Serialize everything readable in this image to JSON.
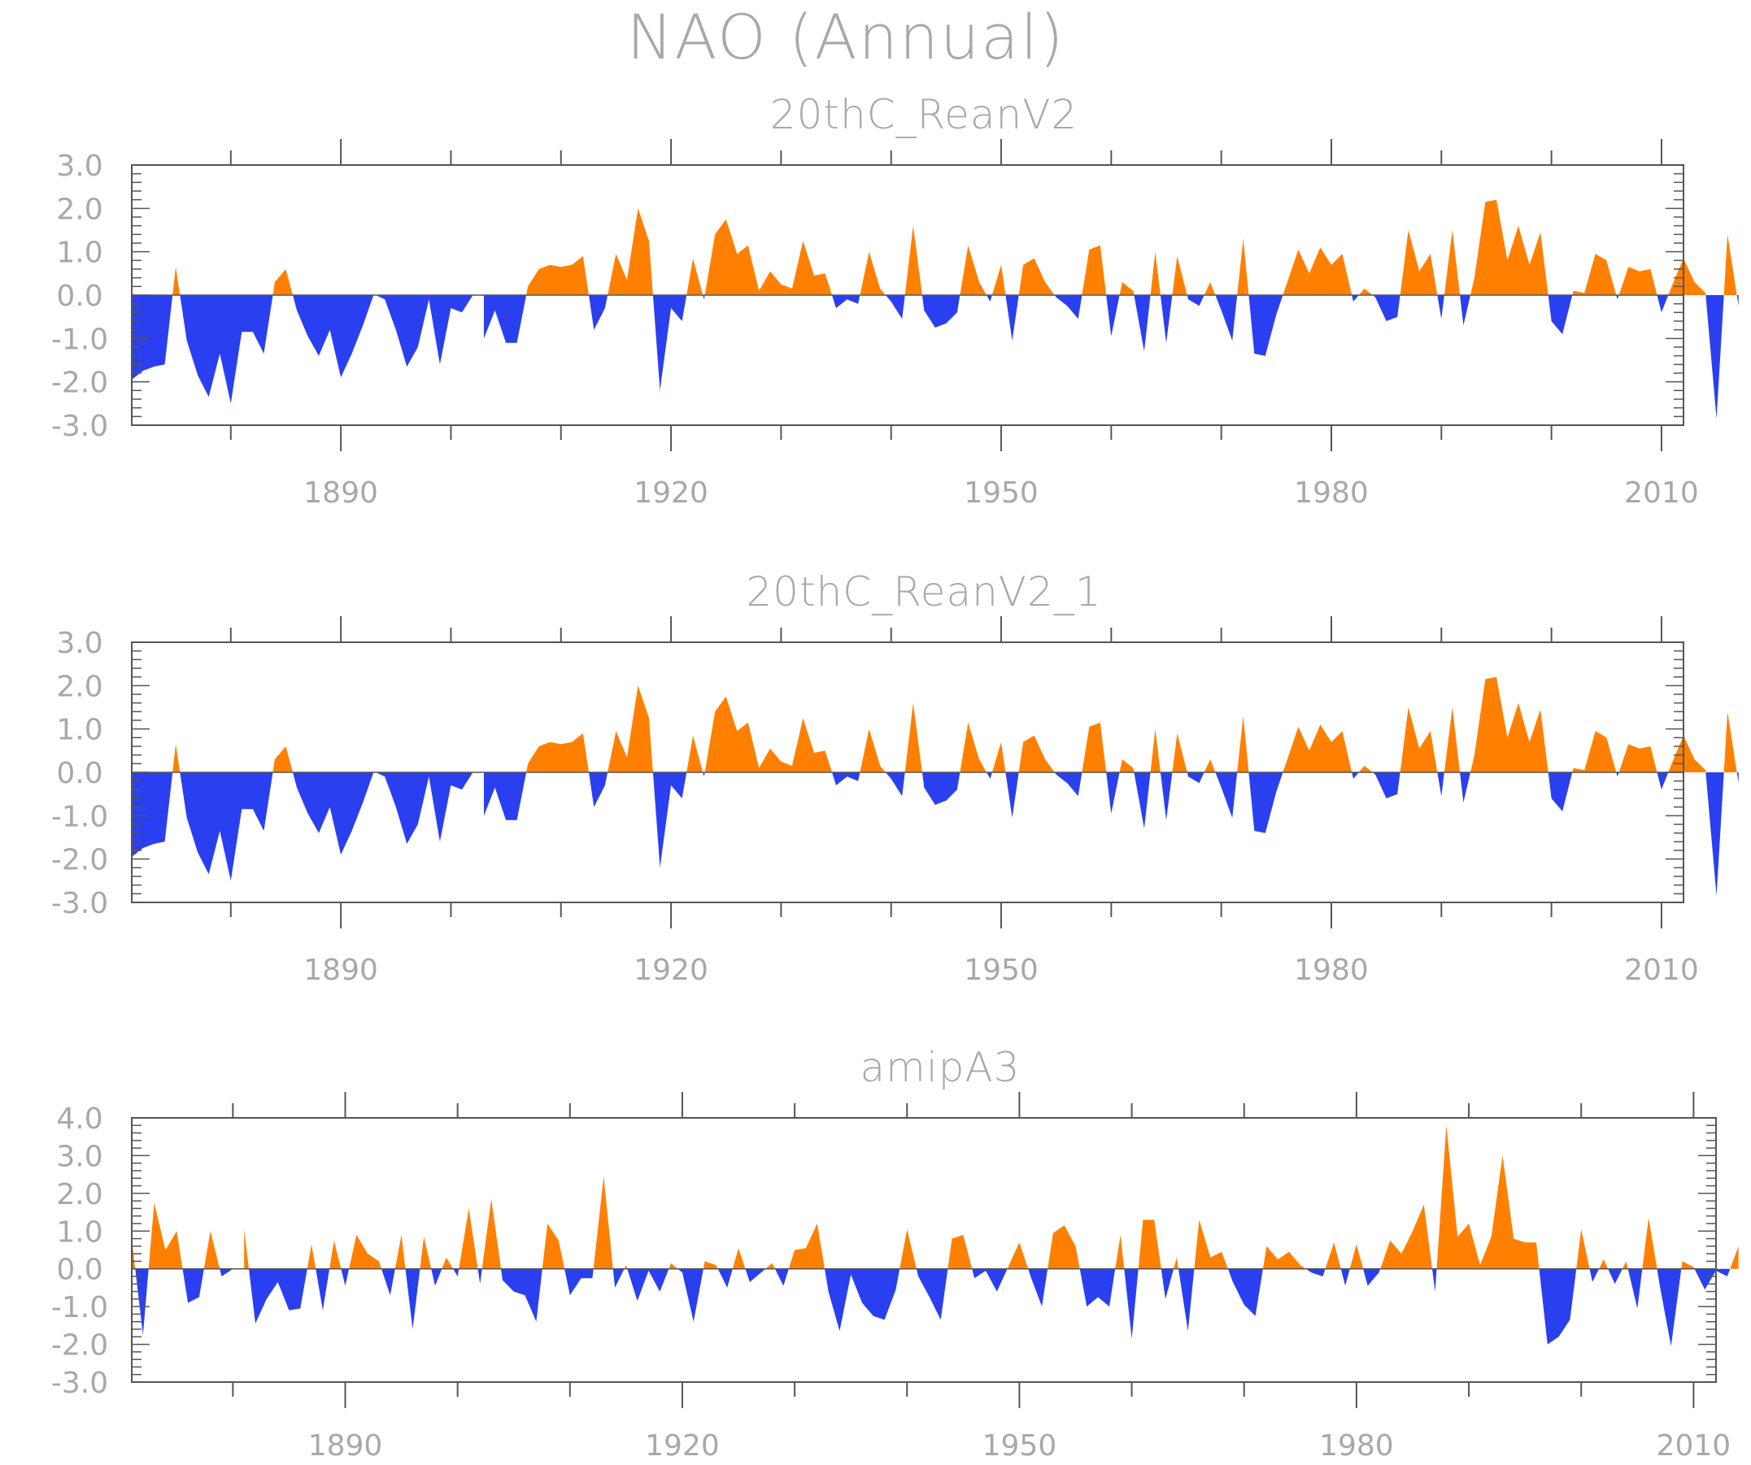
{
  "chart_data": {
    "type": "area",
    "title": "NAO (Annual)",
    "positive_color": "#ff8000",
    "negative_color": "#2a40f0",
    "xlim": [
      1871,
      2012
    ],
    "x_tick_labels": [
      "1890",
      "1920",
      "1950",
      "1980",
      "2010"
    ],
    "x_tick_values": [
      1890,
      1920,
      1950,
      1980,
      2010
    ],
    "panels": [
      {
        "title": "20thC_ReanV2",
        "ylim": [
          -3.0,
          3.0
        ],
        "y_tick_labels": [
          "3.0",
          "2.0",
          "1.0",
          "0.0",
          "-1.0",
          "-2.0",
          "-3.0"
        ],
        "y_tick_values": [
          3,
          2,
          1,
          0,
          -1,
          -2,
          -3
        ],
        "x_start": 1871,
        "values": [
          -1.95,
          -1.75,
          -1.65,
          -1.6,
          0.65,
          -1.05,
          -1.85,
          -2.35,
          -1.35,
          -2.5,
          -0.85,
          -0.85,
          -1.35,
          0.3,
          0.6,
          -0.35,
          -0.95,
          -1.4,
          -0.8,
          -1.9,
          -1.35,
          -0.7,
          0.02,
          -0.1,
          -0.8,
          -1.65,
          -1.2,
          -0.1,
          -1.6,
          -0.3,
          -0.4,
          0.0,
          -1.0,
          -0.35,
          -1.1,
          -1.1,
          0.2,
          0.6,
          0.7,
          0.65,
          0.7,
          0.9,
          -0.8,
          -0.3,
          0.95,
          0.35,
          2.0,
          1.25,
          -2.2,
          -0.3,
          -0.6,
          0.85,
          -0.1,
          1.4,
          1.75,
          0.95,
          1.15,
          0.1,
          0.55,
          0.25,
          0.15,
          1.25,
          0.45,
          0.5,
          -0.3,
          -0.1,
          -0.2,
          1.0,
          0.15,
          -0.15,
          -0.55,
          1.6,
          -0.35,
          -0.75,
          -0.65,
          -0.4,
          1.15,
          0.3,
          -0.15,
          0.7,
          -1.05,
          0.7,
          0.85,
          0.3,
          -0.05,
          -0.25,
          -0.55,
          1.05,
          1.15,
          -0.95,
          0.3,
          0.1,
          -1.3,
          1.0,
          -1.1,
          0.9,
          -0.1,
          -0.25,
          0.3,
          -0.35,
          -1.05,
          1.3,
          -1.35,
          -1.4,
          -0.45,
          0.3,
          1.05,
          0.5,
          1.1,
          0.7,
          0.95,
          -0.15,
          0.15,
          -0.05,
          -0.6,
          -0.5,
          1.5,
          0.55,
          0.95,
          -0.55,
          1.5,
          -0.7,
          0.4,
          2.15,
          2.2,
          0.8,
          1.6,
          0.7,
          1.45,
          -0.6,
          -0.9,
          0.1,
          0.05,
          0.95,
          0.8,
          -0.1,
          0.65,
          0.55,
          0.6,
          -0.4,
          0.25,
          0.85,
          0.3,
          0.05,
          -2.85,
          1.4,
          -0.25
        ]
      },
      {
        "title": "20thC_ReanV2_1",
        "ylim": [
          -3.0,
          3.0
        ],
        "y_tick_labels": [
          "3.0",
          "2.0",
          "1.0",
          "0.0",
          "-1.0",
          "-2.0",
          "-3.0"
        ],
        "y_tick_values": [
          3,
          2,
          1,
          0,
          -1,
          -2,
          -3
        ],
        "x_start": 1871,
        "values": [
          -1.95,
          -1.75,
          -1.65,
          -1.6,
          0.65,
          -1.05,
          -1.85,
          -2.35,
          -1.35,
          -2.5,
          -0.85,
          -0.85,
          -1.35,
          0.3,
          0.6,
          -0.35,
          -0.95,
          -1.4,
          -0.8,
          -1.9,
          -1.35,
          -0.7,
          0.02,
          -0.1,
          -0.8,
          -1.65,
          -1.2,
          -0.1,
          -1.6,
          -0.3,
          -0.4,
          0.0,
          -1.0,
          -0.35,
          -1.1,
          -1.1,
          0.2,
          0.6,
          0.7,
          0.65,
          0.7,
          0.9,
          -0.8,
          -0.3,
          0.95,
          0.35,
          2.0,
          1.25,
          -2.2,
          -0.3,
          -0.6,
          0.85,
          -0.1,
          1.4,
          1.75,
          0.95,
          1.15,
          0.1,
          0.55,
          0.25,
          0.15,
          1.25,
          0.45,
          0.5,
          -0.3,
          -0.1,
          -0.2,
          1.0,
          0.15,
          -0.15,
          -0.55,
          1.6,
          -0.35,
          -0.75,
          -0.65,
          -0.4,
          1.15,
          0.3,
          -0.15,
          0.7,
          -1.05,
          0.7,
          0.85,
          0.3,
          -0.05,
          -0.25,
          -0.55,
          1.05,
          1.15,
          -0.95,
          0.3,
          0.1,
          -1.3,
          1.0,
          -1.1,
          0.9,
          -0.1,
          -0.25,
          0.3,
          -0.35,
          -1.05,
          1.3,
          -1.35,
          -1.4,
          -0.45,
          0.3,
          1.05,
          0.5,
          1.1,
          0.7,
          0.95,
          -0.15,
          0.15,
          -0.05,
          -0.6,
          -0.5,
          1.5,
          0.55,
          0.95,
          -0.55,
          1.5,
          -0.7,
          0.4,
          2.15,
          2.2,
          0.8,
          1.6,
          0.7,
          1.45,
          -0.6,
          -0.9,
          0.1,
          0.05,
          0.95,
          0.8,
          -0.1,
          0.65,
          0.55,
          0.6,
          -0.4,
          0.25,
          0.85,
          0.3,
          0.05,
          -2.85,
          1.4,
          -0.25
        ]
      },
      {
        "title": "amipA3",
        "ylim": [
          -3.0,
          4.0
        ],
        "y_tick_labels": [
          "4.0",
          "3.0",
          "2.0",
          "1.0",
          "0.0",
          "-1.0",
          "-2.0",
          "-3.0"
        ],
        "y_tick_values": [
          4,
          3,
          2,
          1,
          0,
          -1,
          -2,
          -3
        ],
        "x_start": 1871,
        "values": [
          0.8,
          -1.75,
          1.75,
          0.5,
          1.0,
          -0.9,
          -0.75,
          1.0,
          -0.2,
          0.0,
          1.05,
          -1.45,
          -0.8,
          -0.35,
          -1.1,
          -1.05,
          0.65,
          -1.1,
          0.75,
          -0.45,
          0.9,
          0.4,
          0.2,
          -0.7,
          0.9,
          -1.6,
          0.85,
          -0.45,
          0.3,
          -0.2,
          1.6,
          -0.4,
          1.85,
          -0.3,
          -0.6,
          -0.7,
          -1.4,
          1.2,
          0.75,
          -0.7,
          -0.25,
          -0.25,
          2.45,
          -0.5,
          0.1,
          -0.85,
          -0.05,
          -0.6,
          0.15,
          -0.1,
          -1.4,
          0.2,
          0.1,
          -0.5,
          0.55,
          -0.35,
          -0.1,
          0.15,
          -0.45,
          0.5,
          0.55,
          1.2,
          -0.6,
          -1.65,
          -0.15,
          -0.9,
          -1.25,
          -1.35,
          -0.55,
          1.05,
          -0.2,
          -0.75,
          -1.35,
          0.8,
          0.9,
          -0.25,
          -0.05,
          -0.6,
          0.05,
          0.7,
          -0.2,
          -1.0,
          0.95,
          1.15,
          0.6,
          -1.0,
          -0.75,
          -1.0,
          0.9,
          -1.85,
          1.3,
          1.3,
          -0.8,
          0.3,
          -1.65,
          1.3,
          0.3,
          0.45,
          -0.35,
          -0.95,
          -1.25,
          0.6,
          0.25,
          0.45,
          0.1,
          -0.1,
          -0.2,
          0.7,
          -0.45,
          0.65,
          -0.45,
          -0.1,
          0.75,
          0.4,
          1.0,
          1.7,
          -0.6,
          3.8,
          0.85,
          1.2,
          0.1,
          0.85,
          3.0,
          0.8,
          0.7,
          0.7,
          -2.0,
          -1.8,
          -1.35,
          1.05,
          -0.35,
          0.25,
          -0.4,
          0.2,
          -1.05,
          1.35,
          -0.45,
          -2.05,
          0.2,
          0.05,
          -0.55,
          -0.05,
          -0.2,
          0.6
        ]
      }
    ]
  }
}
